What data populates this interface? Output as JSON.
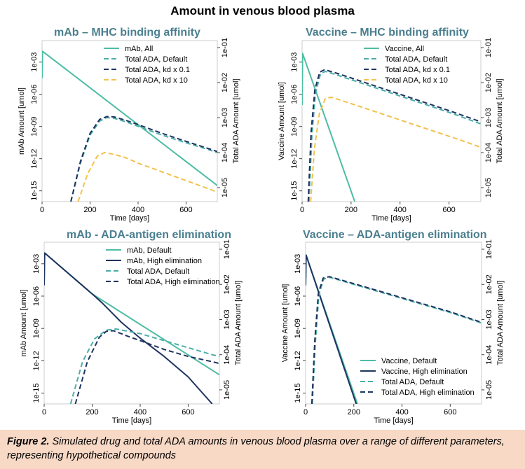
{
  "title": "Amount in venous blood plasma",
  "caption": {
    "label": "Figure 2.",
    "text": " Simulated drug and total ADA amounts in venous blood plasma over a range of different parameters, representing hypothetical compounds"
  },
  "colors": {
    "teal": "#4dbda4",
    "navy": "#1f3460",
    "teal_dash": "#4aafa8",
    "orange_dash": "#f2c24e",
    "title_teal": "#4a7f8f",
    "caption_bg": "#f7d9c6"
  },
  "chart_data": [
    {
      "type": "line",
      "title": "mAb – MHC binding affinity",
      "xlabel": "Time [days]",
      "ylabel": "mAb Amount [umol]",
      "y2label": "Total ADA Amount [umol]",
      "xlim": [
        0,
        730
      ],
      "x_ticks": [
        0,
        200,
        400,
        600
      ],
      "ylim_log10": [
        -16,
        -1
      ],
      "y_ticks": [
        "1e-03",
        "1e-06",
        "1e-09",
        "1e-12",
        "1e-15"
      ],
      "y2lim_log10": [
        -5.4,
        -0.8
      ],
      "y2_ticks": [
        "1e-01",
        "1e-02",
        "1e-03",
        "1e-04",
        "1e-05"
      ],
      "legend_position": "top-right",
      "series": [
        {
          "name": "mAb, All",
          "axis": "y",
          "color": "#4dbda4",
          "dash": "solid",
          "x": [
            0,
            2,
            730
          ],
          "log10": [
            -4.5,
            -2.0,
            -14.5
          ]
        },
        {
          "name": "Total ADA, Default",
          "axis": "y2",
          "color": "#4aafa8",
          "dash": "dashed",
          "x": [
            120,
            160,
            200,
            240,
            270,
            300,
            350,
            400,
            500,
            600,
            700,
            730
          ],
          "log10": [
            -5.4,
            -4.3,
            -3.5,
            -3.1,
            -3.0,
            -3.02,
            -3.12,
            -3.25,
            -3.5,
            -3.72,
            -3.93,
            -4.0
          ]
        },
        {
          "name": "Total ADA, kd x 0.1",
          "axis": "y2",
          "color": "#1f3460",
          "dash": "dashed",
          "x": [
            120,
            160,
            200,
            240,
            270,
            300,
            350,
            400,
            500,
            600,
            700,
            730
          ],
          "log10": [
            -5.4,
            -4.25,
            -3.45,
            -3.05,
            -2.97,
            -2.98,
            -3.08,
            -3.2,
            -3.45,
            -3.68,
            -3.9,
            -3.97
          ]
        },
        {
          "name": "Total ADA, kd x 10",
          "axis": "y2",
          "color": "#f2c24e",
          "dash": "dashed",
          "x": [
            150,
            190,
            230,
            260,
            300,
            350,
            400,
            500,
            600,
            700,
            730
          ],
          "log10": [
            -5.4,
            -4.6,
            -4.1,
            -4.0,
            -4.05,
            -4.15,
            -4.3,
            -4.55,
            -4.8,
            -5.05,
            -5.13
          ]
        }
      ]
    },
    {
      "type": "line",
      "title": "Vaccine – MHC binding affinity",
      "xlabel": "Time [days]",
      "ylabel": "Vaccine Amount [umol]",
      "y2label": "Total ADA Amount [umol]",
      "xlim": [
        0,
        730
      ],
      "x_ticks": [
        0,
        200,
        400,
        600
      ],
      "ylim_log10": [
        -16,
        -1
      ],
      "y_ticks": [
        "1e-03",
        "1e-06",
        "1e-09",
        "1e-12",
        "1e-15"
      ],
      "y2lim_log10": [
        -5.4,
        -0.8
      ],
      "y2_ticks": [
        "1e-01",
        "1e-02",
        "1e-03",
        "1e-04",
        "1e-05"
      ],
      "legend_position": "top-right",
      "series": [
        {
          "name": "Vaccine, All",
          "axis": "y",
          "color": "#4dbda4",
          "dash": "solid",
          "x": [
            0,
            2,
            215
          ],
          "log10": [
            -7.0,
            -2.2,
            -16.0
          ]
        },
        {
          "name": "Total ADA, Default",
          "axis": "y2",
          "color": "#4aafa8",
          "dash": "dashed",
          "x": [
            28,
            40,
            55,
            75,
            95,
            150,
            300,
            450,
            600,
            730
          ],
          "log10": [
            -5.4,
            -3.5,
            -2.3,
            -1.75,
            -1.68,
            -1.8,
            -2.15,
            -2.5,
            -2.85,
            -3.18
          ]
        },
        {
          "name": "Total ADA, kd x 0.1",
          "axis": "y2",
          "color": "#1f3460",
          "dash": "dashed",
          "x": [
            25,
            37,
            52,
            72,
            92,
            150,
            300,
            450,
            600,
            730
          ],
          "log10": [
            -5.4,
            -3.4,
            -2.2,
            -1.7,
            -1.63,
            -1.75,
            -2.1,
            -2.45,
            -2.8,
            -3.12
          ]
        },
        {
          "name": "Total ADA, kd x 10",
          "axis": "y2",
          "color": "#f2c24e",
          "dash": "dashed",
          "x": [
            35,
            50,
            70,
            95,
            120,
            200,
            350,
            500,
            650,
            730
          ],
          "log10": [
            -5.4,
            -3.9,
            -2.9,
            -2.45,
            -2.42,
            -2.6,
            -2.95,
            -3.3,
            -3.65,
            -3.85
          ]
        }
      ]
    },
    {
      "type": "line",
      "title": "mAb - ADA-antigen elimination",
      "xlabel": "Time [days]",
      "ylabel": "mAb Amount [umol]",
      "y2label": "Total ADA Amount [umol]",
      "xlim": [
        0,
        730
      ],
      "x_ticks": [
        0,
        200,
        400,
        600
      ],
      "ylim_log10": [
        -16,
        -1
      ],
      "y_ticks": [
        "1e-03",
        "1e-06",
        "1e-09",
        "1e-12",
        "1e-15"
      ],
      "y2lim_log10": [
        -5.4,
        -0.8
      ],
      "y2_ticks": [
        "1e-01",
        "1e-02",
        "1e-03",
        "1e-04",
        "1e-05"
      ],
      "legend_position": "top-right",
      "series": [
        {
          "name": "mAb, Default",
          "axis": "y",
          "color": "#4dbda4",
          "dash": "solid",
          "x": [
            0,
            2,
            200,
            730
          ],
          "log10": [
            -5.0,
            -2.0,
            -5.8,
            -13.3
          ]
        },
        {
          "name": "mAb, High elimination",
          "axis": "y",
          "color": "#1f3460",
          "dash": "solid",
          "x": [
            0,
            2,
            200,
            240,
            280,
            320,
            400,
            500,
            600,
            700
          ],
          "log10": [
            -5.0,
            -2.0,
            -5.8,
            -6.6,
            -7.5,
            -8.4,
            -9.9,
            -11.6,
            -13.5,
            -16.0
          ]
        },
        {
          "name": "Total ADA, Default",
          "axis": "y2",
          "color": "#4aafa8",
          "dash": "dashed",
          "x": [
            110,
            160,
            210,
            260,
            300,
            400,
            500,
            600,
            700,
            730
          ],
          "log10": [
            -5.4,
            -4.2,
            -3.55,
            -3.3,
            -3.27,
            -3.4,
            -3.6,
            -3.8,
            -4.0,
            -4.05
          ]
        },
        {
          "name": "Total ADA, High elimination",
          "axis": "y2",
          "color": "#1f3460",
          "dash": "dashed",
          "x": [
            130,
            180,
            230,
            260,
            290,
            350,
            400,
            500,
            600,
            700,
            730
          ],
          "log10": [
            -5.4,
            -4.2,
            -3.5,
            -3.33,
            -3.32,
            -3.48,
            -3.6,
            -3.85,
            -4.05,
            -4.2,
            -4.25
          ]
        }
      ]
    },
    {
      "type": "line",
      "title": "Vaccine – ADA-antigen elimination",
      "xlabel": "Time [days]",
      "ylabel": "Vaccine Amount [umol]",
      "y2label": "Total ADA Amount [umol]",
      "xlim": [
        0,
        730
      ],
      "x_ticks": [
        0,
        200,
        400,
        600
      ],
      "ylim_log10": [
        -16,
        -1
      ],
      "y_ticks": [
        "1e-03",
        "1e-06",
        "1e-09",
        "1e-12",
        "1e-15"
      ],
      "y2lim_log10": [
        -5.4,
        -0.8
      ],
      "y2_ticks": [
        "1e-01",
        "1e-02",
        "1e-03",
        "1e-04",
        "1e-05"
      ],
      "legend_position": "bottom-right",
      "series": [
        {
          "name": "Vaccine, Default",
          "axis": "y",
          "color": "#4dbda4",
          "dash": "solid",
          "x": [
            0,
            2,
            215
          ],
          "log10": [
            -5.0,
            -2.2,
            -16.0
          ]
        },
        {
          "name": "Vaccine, High elimination",
          "axis": "y",
          "color": "#1f3460",
          "dash": "solid",
          "x": [
            0,
            2,
            210
          ],
          "log10": [
            -5.0,
            -2.2,
            -16.0
          ]
        },
        {
          "name": "Total ADA, Default",
          "axis": "y2",
          "color": "#4aafa8",
          "dash": "dashed",
          "x": [
            28,
            40,
            55,
            75,
            100,
            150,
            300,
            450,
            600,
            730
          ],
          "log10": [
            -5.4,
            -3.7,
            -2.3,
            -1.85,
            -1.8,
            -1.9,
            -2.2,
            -2.5,
            -2.8,
            -3.1
          ]
        },
        {
          "name": "Total ADA, High elimination",
          "axis": "y2",
          "color": "#1f3460",
          "dash": "dashed",
          "x": [
            26,
            38,
            53,
            73,
            98,
            150,
            300,
            450,
            600,
            730
          ],
          "log10": [
            -5.4,
            -3.6,
            -2.25,
            -1.82,
            -1.78,
            -1.88,
            -2.18,
            -2.48,
            -2.78,
            -3.08
          ]
        }
      ]
    }
  ]
}
